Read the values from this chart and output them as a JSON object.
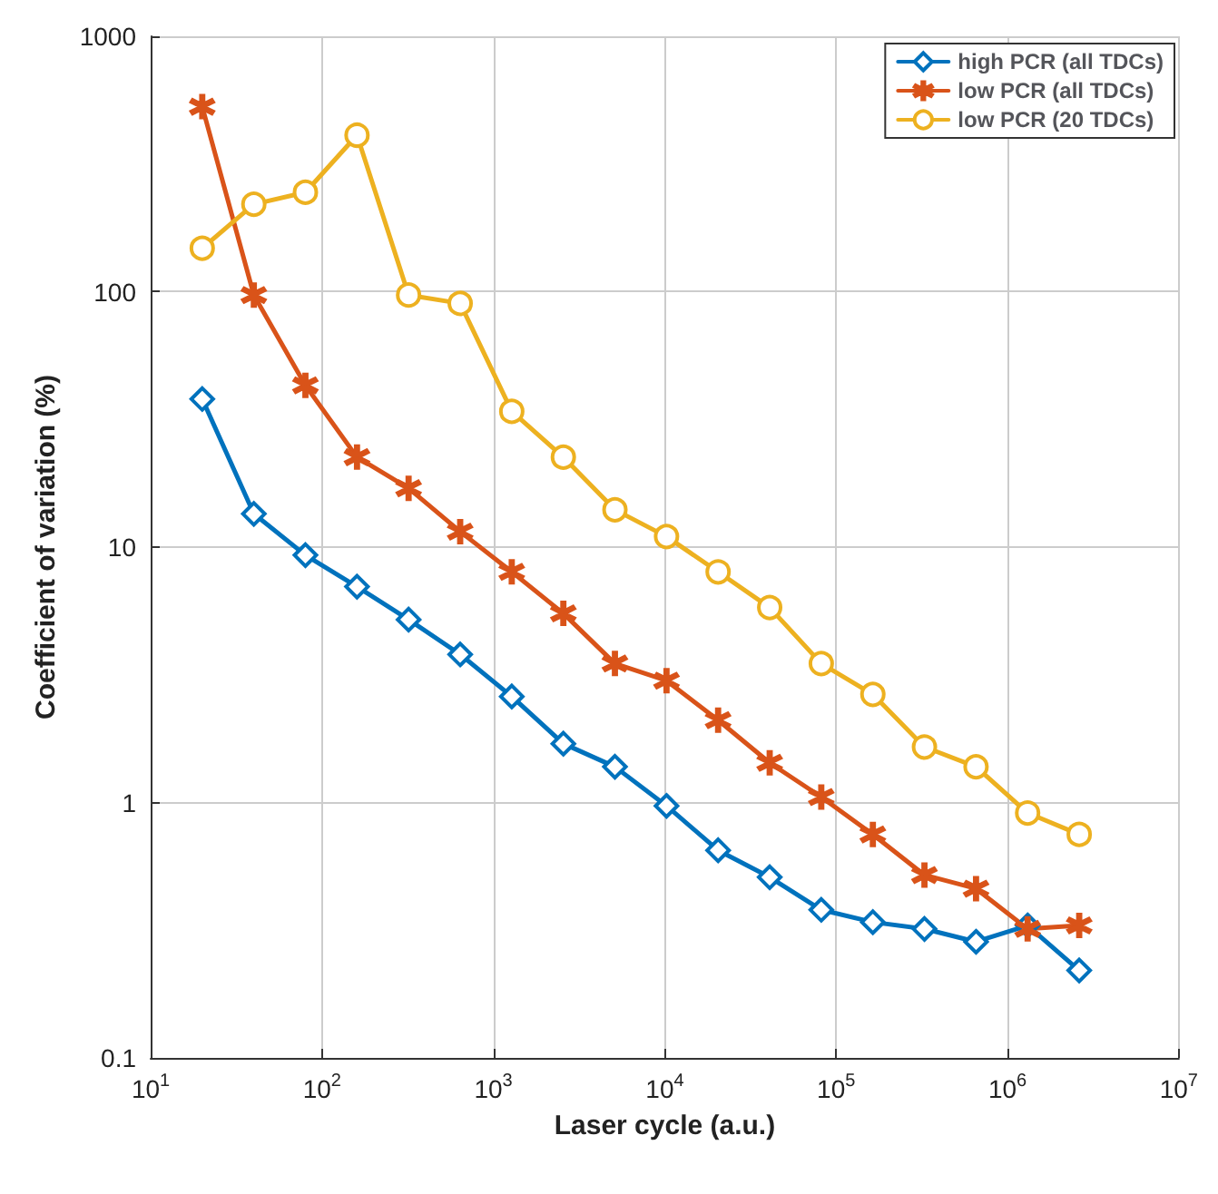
{
  "chart_data": {
    "type": "line",
    "xlabel": "Laser cycle (a.u.)",
    "ylabel": "Coefficient of variation (%)",
    "log": "xy",
    "grid": true,
    "legend": "top right",
    "line_style": "solid",
    "x": [
      20,
      40,
      80,
      160,
      320,
      640,
      1280,
      2560,
      5120,
      10240,
      20480,
      40960,
      81920,
      163840,
      327680,
      655360,
      1310720,
      2621440
    ],
    "xlim": [
      10,
      10000000
    ],
    "xticks": [
      {
        "value": 10,
        "label": "10$^{1}$"
      },
      {
        "value": 100,
        "label": "10$^{2}$"
      },
      {
        "value": 1000,
        "label": "10$^{3}$"
      },
      {
        "value": 10000,
        "label": "10$^{4}$"
      },
      {
        "value": 100000,
        "label": "10$^{5}$"
      },
      {
        "value": 1000000,
        "label": "10$^{6}$"
      },
      {
        "value": 10000000,
        "label": "10$^{7}$"
      }
    ],
    "ylim": [
      0.1,
      1000
    ],
    "yticks": [
      0.1,
      1,
      10,
      100,
      1000
    ],
    "series": [
      {
        "name": "high PCR (all TDCs)",
        "color": "#0072bd",
        "marker": "diamond",
        "values": [
          38,
          13.5,
          9.3,
          7.0,
          5.2,
          3.8,
          2.6,
          1.7,
          1.38,
          0.97,
          0.65,
          0.51,
          0.38,
          0.34,
          0.32,
          0.285,
          0.33,
          0.22
        ]
      },
      {
        "name": "low PCR (all TDCs)",
        "color": "#d95319",
        "marker": "star",
        "values": [
          530,
          97,
          43,
          22.5,
          17,
          11.5,
          8.0,
          5.5,
          3.5,
          3.0,
          2.1,
          1.43,
          1.05,
          0.75,
          0.52,
          0.46,
          0.32,
          0.33
        ]
      },
      {
        "name": "low PCR (20 TDCs)",
        "color": "#edb120",
        "marker": "circle",
        "values": [
          148,
          220,
          245,
          410,
          97,
          90,
          34,
          22.5,
          14,
          11,
          8.0,
          5.8,
          3.5,
          2.65,
          1.65,
          1.38,
          0.91,
          0.75
        ]
      }
    ]
  }
}
